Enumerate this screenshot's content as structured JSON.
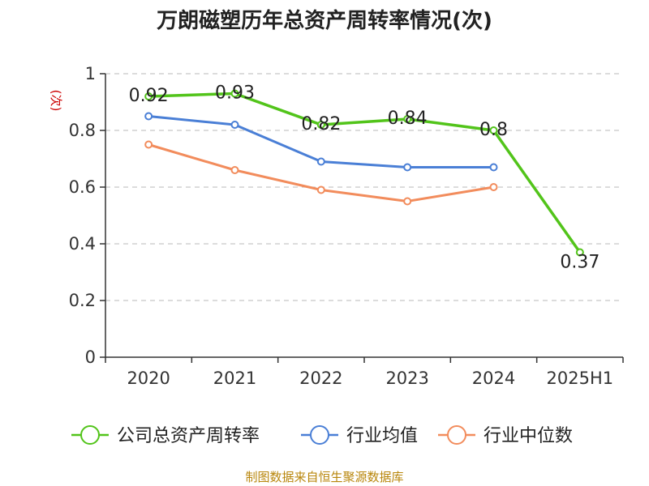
{
  "chart_data": {
    "type": "line",
    "title": "万朗磁塑历年总资产周转率情况(次)",
    "ylabel": "(次)",
    "xlabel": "",
    "categories": [
      "2020",
      "2021",
      "2022",
      "2023",
      "2024",
      "2025H1"
    ],
    "y_ticks": [
      "0",
      "0.2",
      "0.4",
      "0.6",
      "0.8",
      "1"
    ],
    "ylim": [
      0,
      1
    ],
    "grid": "horizontal-dashed",
    "legend_position": "bottom",
    "series": [
      {
        "name": "公司总资产周转率",
        "color": "#52c41a",
        "values": [
          0.92,
          0.93,
          0.82,
          0.84,
          0.8,
          0.37
        ],
        "labels": [
          "0.92",
          "0.93",
          "0.82",
          "0.84",
          "0.8",
          "0.37"
        ]
      },
      {
        "name": "行业均值",
        "color": "#4a7fd6",
        "values": [
          0.85,
          0.82,
          0.69,
          0.67,
          0.67,
          null
        ]
      },
      {
        "name": "行业中位数",
        "color": "#f28c5c",
        "values": [
          0.75,
          0.66,
          0.59,
          0.55,
          0.6,
          null
        ]
      }
    ]
  },
  "source": "制图数据来自恒生聚源数据库"
}
